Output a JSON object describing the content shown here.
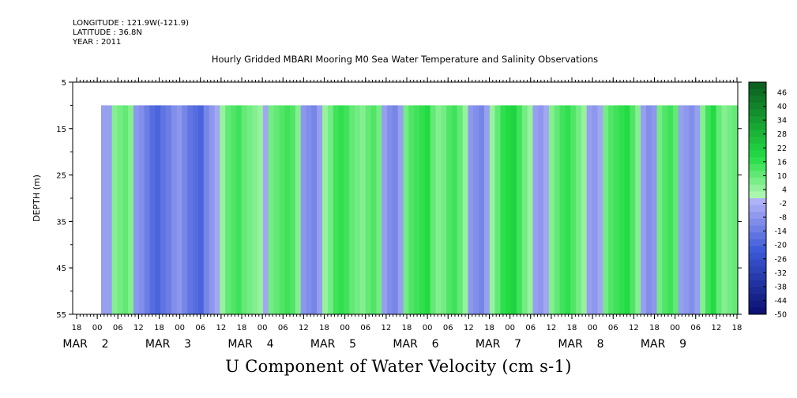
{
  "header": {
    "longitude": "LONGITUDE : 121.9W(-121.9)",
    "latitude": "LATITUDE : 36.8N",
    "year": "YEAR : 2011"
  },
  "chart_data": {
    "type": "heatmap",
    "title": "Hourly Gridded MBARI Mooring M0 Sea Water Temperature and Salinity Observations",
    "xlabel": "U Component of Water Velocity (cm s-1)",
    "ylabel": "DEPTH (m)",
    "ylim": [
      55,
      5
    ],
    "yticks": [
      5,
      15,
      25,
      35,
      45,
      55
    ],
    "x_hour_ticks": [
      "18",
      "00",
      "06",
      "12",
      "18",
      "00",
      "06",
      "12",
      "18",
      "00",
      "06",
      "12",
      "18",
      "00",
      "06",
      "12",
      "18",
      "00",
      "06",
      "12",
      "18",
      "00",
      "06",
      "12",
      "18",
      "00",
      "06",
      "12",
      "18",
      "00",
      "06",
      "12",
      "18"
    ],
    "x_day_labels": [
      {
        "month": "MAR",
        "day": "2"
      },
      {
        "month": "MAR",
        "day": "3"
      },
      {
        "month": "MAR",
        "day": "4"
      },
      {
        "month": "MAR",
        "day": "5"
      },
      {
        "month": "MAR",
        "day": "6"
      },
      {
        "month": "MAR",
        "day": "7"
      },
      {
        "month": "MAR",
        "day": "8"
      },
      {
        "month": "MAR",
        "day": "9"
      }
    ],
    "data_depth_range": [
      10,
      55
    ],
    "colorbar_levels": [
      46,
      40,
      34,
      28,
      22,
      16,
      10,
      4,
      -2,
      -8,
      -14,
      -20,
      -26,
      -32,
      -38,
      -44,
      -50
    ],
    "colorbar_range": [
      -50,
      50
    ],
    "u_velocity_by_column": [
      -6,
      -6,
      6,
      8,
      10,
      6,
      -8,
      -10,
      -14,
      -18,
      -20,
      -16,
      -14,
      -10,
      -8,
      -12,
      -16,
      -18,
      -20,
      -12,
      -8,
      -4,
      4,
      10,
      12,
      14,
      10,
      8,
      6,
      4,
      -4,
      8,
      10,
      12,
      14,
      12,
      6,
      -8,
      -10,
      -12,
      -6,
      4,
      8,
      14,
      16,
      14,
      10,
      8,
      6,
      10,
      12,
      8,
      -6,
      -10,
      -12,
      -6,
      8,
      12,
      14,
      16,
      18,
      10,
      6,
      8,
      12,
      14,
      10,
      4,
      -8,
      -10,
      -12,
      -6,
      4,
      10,
      16,
      18,
      20,
      14,
      8,
      4,
      -6,
      -8,
      -4,
      6,
      10,
      14,
      16,
      12,
      8,
      4,
      -6,
      -8,
      -4,
      8,
      12,
      14,
      16,
      18,
      12,
      6,
      -6,
      -10,
      -8,
      8,
      12,
      14,
      10,
      -6,
      -8,
      -10,
      -6,
      6,
      14,
      18,
      10,
      6,
      8,
      10
    ],
    "gridlines": false
  },
  "colors": {
    "neg_strong": "#0a0f6e",
    "neg_mid": "#3c5ad8",
    "neg_weak": "#b8b8f8",
    "pos_weak": "#b8f8b8",
    "pos_mid": "#22dd44",
    "pos_strong": "#0b5a1e"
  }
}
